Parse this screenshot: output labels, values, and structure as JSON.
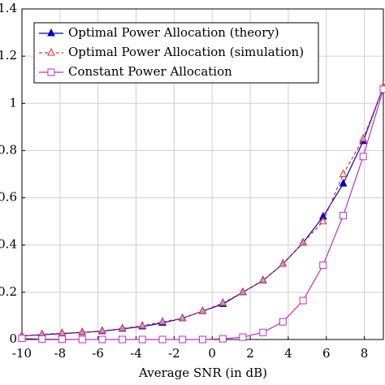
{
  "chart_data": {
    "type": "line",
    "x_label": "Average SNR (in dB)",
    "x": [
      -10,
      -8.94,
      -7.89,
      -6.83,
      -5.78,
      -4.72,
      -3.67,
      -2.61,
      -1.56,
      -0.5,
      0.56,
      1.61,
      2.67,
      3.72,
      4.78,
      5.83,
      6.89,
      7.94,
      9
    ],
    "series": [
      {
        "name": "Optimal Power Allocation (theory)",
        "color": "#0000cc",
        "marker": "triangle",
        "dash": false,
        "values": [
          0.015,
          0.02,
          0.025,
          0.03,
          0.035,
          0.045,
          0.055,
          0.07,
          0.09,
          0.12,
          0.15,
          0.2,
          0.25,
          0.32,
          0.41,
          0.52,
          0.66,
          0.84,
          1.07
        ]
      },
      {
        "name": "Optimal Power Allocation (simulation)",
        "color": "#e03030",
        "marker": "triangle-open",
        "dash": true,
        "values": [
          0.015,
          0.022,
          0.027,
          0.03,
          0.037,
          0.047,
          0.058,
          0.075,
          0.09,
          0.12,
          0.155,
          0.2,
          0.25,
          0.32,
          0.41,
          0.5,
          0.7,
          0.85,
          1.07
        ]
      },
      {
        "name": "Constant Power Allocation",
        "color": "#c030c0",
        "marker": "square-open",
        "dash": false,
        "values": [
          0.005,
          0.002,
          0.001,
          0,
          0,
          0,
          0,
          0,
          0,
          0,
          0.003,
          0.01,
          0.03,
          0.075,
          0.165,
          0.315,
          0.525,
          0.775,
          1.06
        ]
      }
    ],
    "xlim": [
      -10,
      9
    ],
    "xticks": [
      -10,
      -8,
      -6,
      -4,
      -2,
      0,
      2,
      4,
      6,
      8
    ],
    "ylim": [
      0,
      1.4
    ],
    "yticks": [
      0,
      0.2,
      0.4,
      0.6,
      0.8,
      1,
      1.2,
      1.4
    ],
    "grid": true,
    "legend": "top-left"
  }
}
